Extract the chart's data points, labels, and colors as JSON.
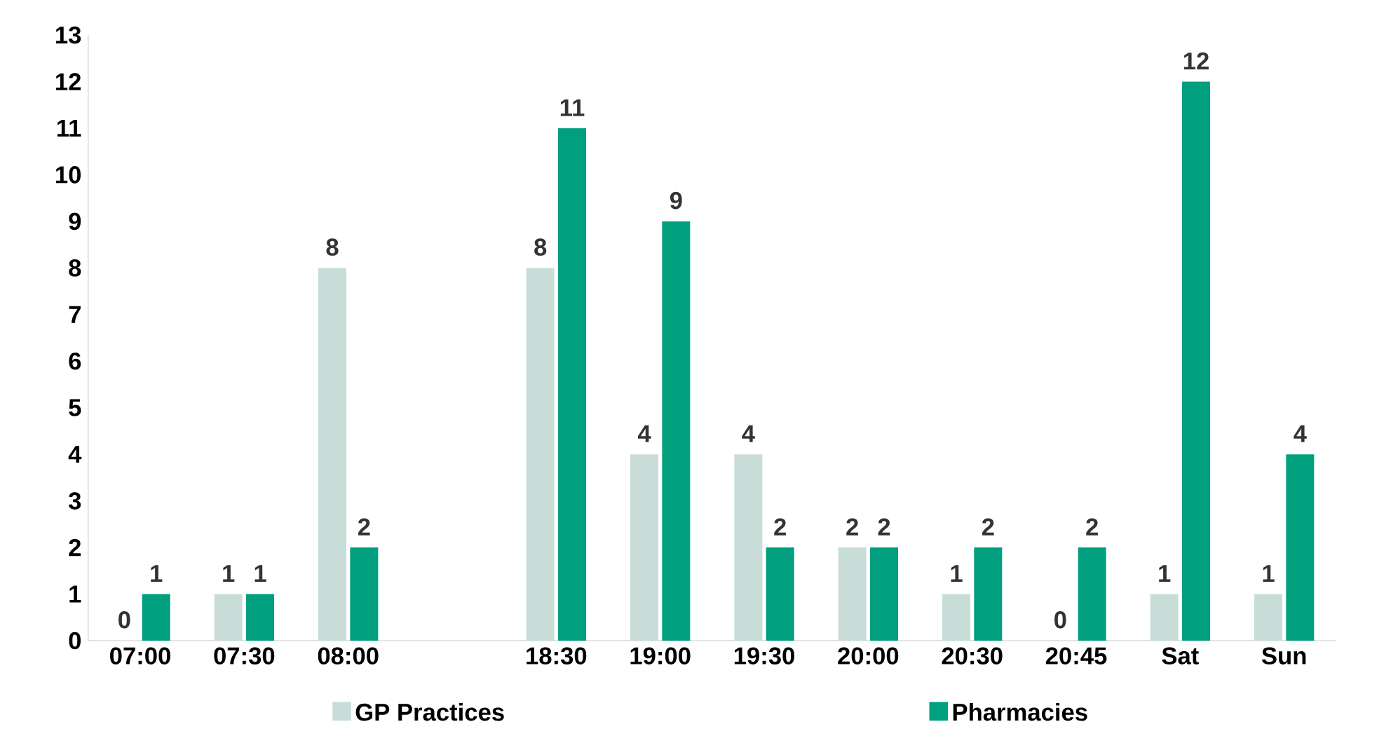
{
  "chart_data": {
    "type": "bar",
    "categories": [
      "07:00",
      "07:30",
      "08:00",
      null,
      "18:30",
      "19:00",
      "19:30",
      "20:00",
      "20:30",
      "20:45",
      "Sat",
      "Sun"
    ],
    "series": [
      {
        "name": "GP Practices",
        "color": "#c8ddd7",
        "values": [
          0,
          1,
          8,
          null,
          8,
          4,
          4,
          2,
          1,
          0,
          1,
          1
        ]
      },
      {
        "name": "Pharmacies",
        "color": "#00a07e",
        "values": [
          1,
          1,
          2,
          null,
          11,
          9,
          2,
          2,
          2,
          2,
          12,
          4
        ]
      }
    ],
    "ylim": [
      0,
      13
    ],
    "yticks": [
      0,
      1,
      2,
      3,
      4,
      5,
      6,
      7,
      8,
      9,
      10,
      11,
      12,
      13
    ],
    "grid": false,
    "legend": "bottom",
    "data_labels": true
  }
}
